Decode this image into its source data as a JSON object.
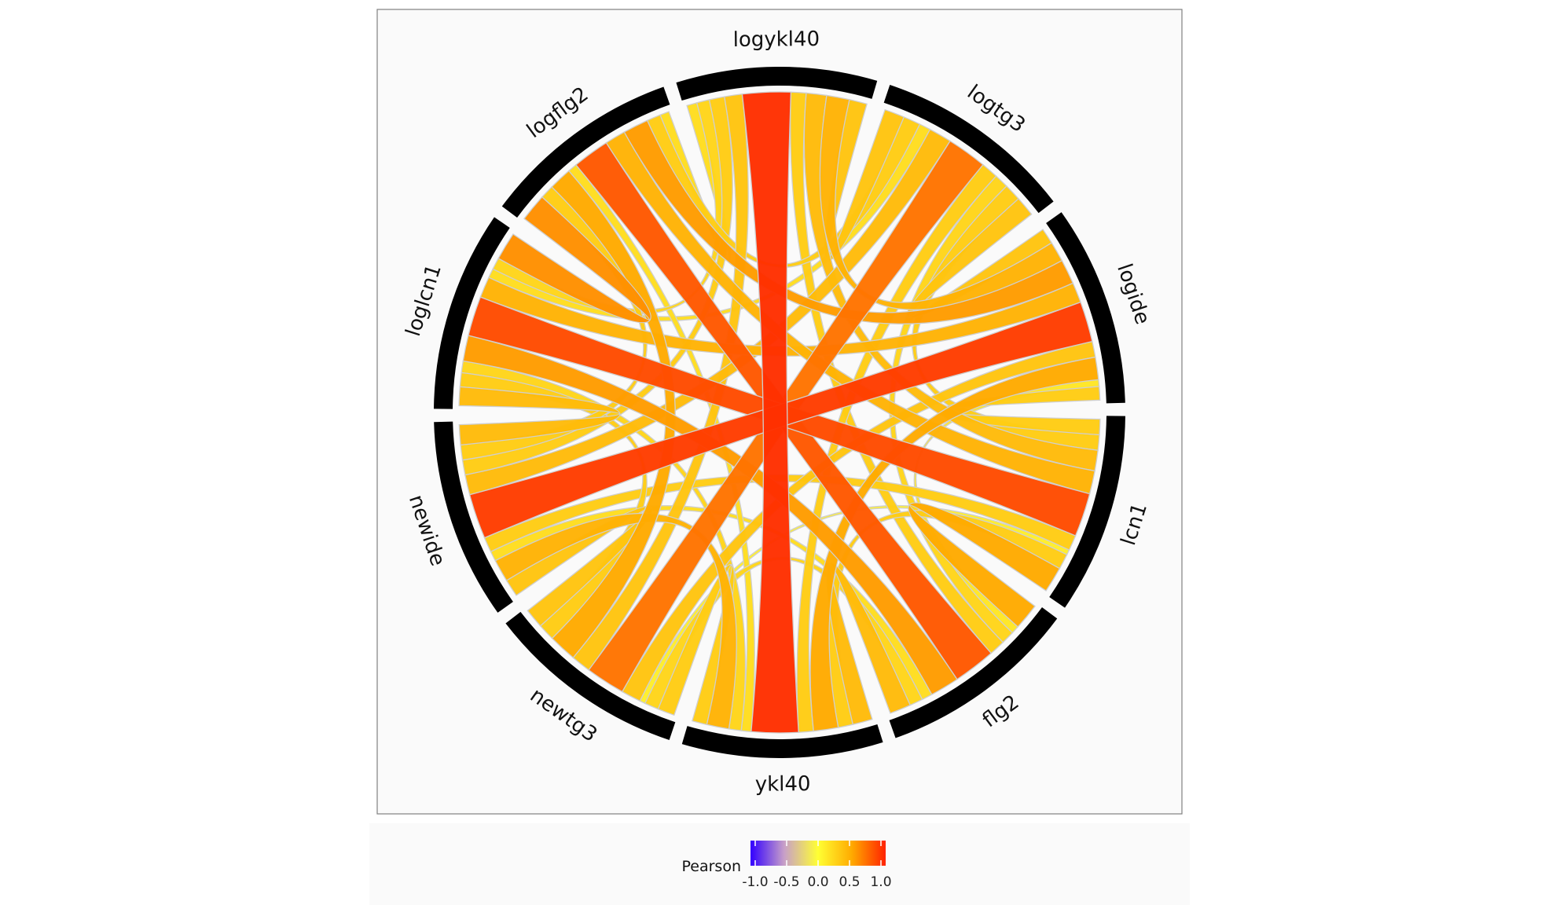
{
  "chart_data": {
    "type": "chord",
    "sectors": [
      "logykl40",
      "logtg3",
      "logide",
      "lcn1",
      "flg2",
      "ykl40",
      "newtg3",
      "newide",
      "loglcn1",
      "logflg2"
    ],
    "links": [
      {
        "from": "logykl40",
        "to": "ykl40",
        "value": 0.95
      },
      {
        "from": "logykl40",
        "to": "logtg3",
        "value": 0.35
      },
      {
        "from": "logykl40",
        "to": "logide",
        "value": 0.45
      },
      {
        "from": "logykl40",
        "to": "lcn1",
        "value": 0.4
      },
      {
        "from": "logykl40",
        "to": "flg2",
        "value": 0.3
      },
      {
        "from": "logykl40",
        "to": "newtg3",
        "value": 0.35
      },
      {
        "from": "logykl40",
        "to": "newide",
        "value": 0.3
      },
      {
        "from": "logykl40",
        "to": "loglcn1",
        "value": 0.25
      },
      {
        "from": "logykl40",
        "to": "logflg2",
        "value": 0.2
      },
      {
        "from": "logtg3",
        "to": "newtg3",
        "value": 0.7
      },
      {
        "from": "logtg3",
        "to": "logide",
        "value": 0.35
      },
      {
        "from": "logtg3",
        "to": "lcn1",
        "value": 0.3
      },
      {
        "from": "logtg3",
        "to": "flg2",
        "value": 0.25
      },
      {
        "from": "logtg3",
        "to": "ykl40",
        "value": 0.3
      },
      {
        "from": "logtg3",
        "to": "newide",
        "value": 0.4
      },
      {
        "from": "logtg3",
        "to": "loglcn1",
        "value": 0.2
      },
      {
        "from": "logtg3",
        "to": "logflg2",
        "value": 0.3
      },
      {
        "from": "logide",
        "to": "newide",
        "value": 0.9
      },
      {
        "from": "logide",
        "to": "lcn1",
        "value": 0.3
      },
      {
        "from": "logide",
        "to": "flg2",
        "value": 0.15
      },
      {
        "from": "logide",
        "to": "ykl40",
        "value": 0.5
      },
      {
        "from": "logide",
        "to": "newtg3",
        "value": 0.35
      },
      {
        "from": "logide",
        "to": "loglcn1",
        "value": 0.45
      },
      {
        "from": "logide",
        "to": "logflg2",
        "value": 0.55
      },
      {
        "from": "lcn1",
        "to": "loglcn1",
        "value": 0.85
      },
      {
        "from": "lcn1",
        "to": "flg2",
        "value": 0.5
      },
      {
        "from": "lcn1",
        "to": "ykl40",
        "value": 0.3
      },
      {
        "from": "lcn1",
        "to": "newtg3",
        "value": 0.1
      },
      {
        "from": "lcn1",
        "to": "newide",
        "value": 0.3
      },
      {
        "from": "lcn1",
        "to": "logflg2",
        "value": 0.45
      },
      {
        "from": "flg2",
        "to": "logflg2",
        "value": 0.8
      },
      {
        "from": "flg2",
        "to": "ykl40",
        "value": 0.4
      },
      {
        "from": "flg2",
        "to": "newtg3",
        "value": 0.25
      },
      {
        "from": "flg2",
        "to": "newide",
        "value": 0.2
      },
      {
        "from": "flg2",
        "to": "loglcn1",
        "value": 0.55
      },
      {
        "from": "ykl40",
        "to": "newtg3",
        "value": 0.3
      },
      {
        "from": "ykl40",
        "to": "newide",
        "value": 0.45
      },
      {
        "from": "ykl40",
        "to": "loglcn1",
        "value": 0.25
      },
      {
        "from": "ykl40",
        "to": "logflg2",
        "value": 0.2
      },
      {
        "from": "newtg3",
        "to": "newide",
        "value": 0.35
      },
      {
        "from": "newtg3",
        "to": "loglcn1",
        "value": 0.3
      },
      {
        "from": "newtg3",
        "to": "logflg2",
        "value": 0.5
      },
      {
        "from": "newide",
        "to": "loglcn1",
        "value": 0.4
      },
      {
        "from": "newide",
        "to": "logflg2",
        "value": 0.3
      },
      {
        "from": "loglcn1",
        "to": "logflg2",
        "value": 0.6
      }
    ],
    "legend": {
      "title": "Pearson",
      "ticks": [
        "-1.0",
        "-0.5",
        "0.0",
        "0.5",
        "1.0"
      ],
      "colors": [
        "#3300ff",
        "#c8a0c8",
        "#ffff33",
        "#ffaa00",
        "#ff2200"
      ]
    },
    "colors": {
      "panel_background": "#fafafa",
      "panel_border": "#808080",
      "sector_track": "#000000",
      "chord_edge": "#cfcfcf"
    }
  }
}
